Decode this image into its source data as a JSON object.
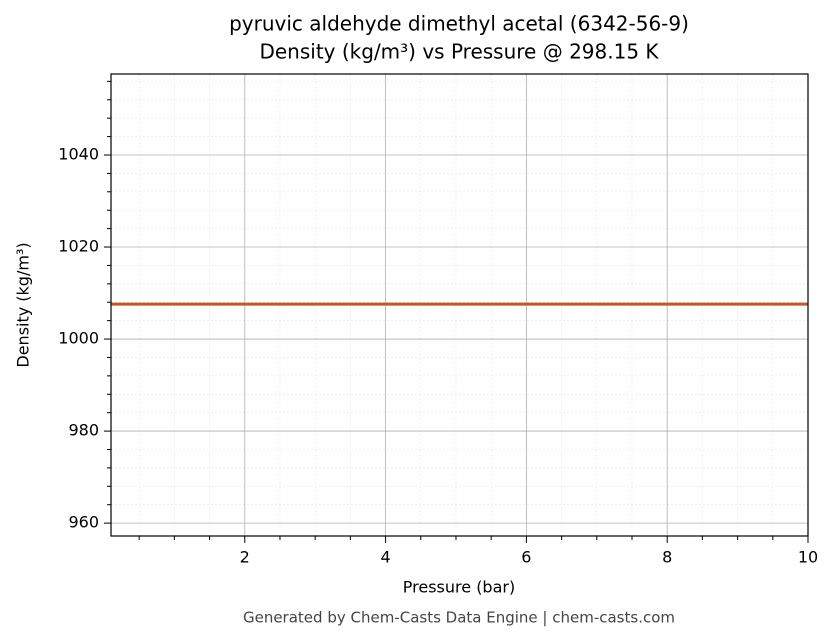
{
  "chart_data": {
    "type": "line",
    "title": "pyruvic aldehyde dimethyl acetal (6342-56-9)",
    "subtitle": "Density (kg/m³) vs Pressure @ 298.15 K",
    "x_label": "Pressure (bar)",
    "y_label": "Density (kg/m³)",
    "footer": "Generated by Chem-Casts Data Engine | chem-casts.com",
    "x": [
      0.1,
      2,
      4,
      6,
      8,
      10
    ],
    "series": [
      {
        "name": "Density",
        "color": "#c8552a",
        "values": [
          1007.6,
          1007.6,
          1007.6,
          1007.6,
          1007.6,
          1007.6
        ]
      }
    ],
    "xlim": [
      0.1,
      10
    ],
    "ylim": [
      957.2,
      1057.6
    ],
    "xticks": [
      2,
      4,
      6,
      8,
      10
    ],
    "yticks": [
      960,
      980,
      1000,
      1020,
      1040
    ],
    "xminorticks": [
      0.5,
      1,
      1.5,
      2.5,
      3,
      3.5,
      4.5,
      5,
      5.5,
      6.5,
      7,
      7.5,
      8.5,
      9,
      9.5
    ],
    "yminorticks": [
      964,
      968,
      972,
      976,
      984,
      988,
      992,
      996,
      1004,
      1008,
      1012,
      1016,
      1024,
      1028,
      1032,
      1036,
      1044,
      1048,
      1052,
      1056
    ],
    "grid": true
  }
}
